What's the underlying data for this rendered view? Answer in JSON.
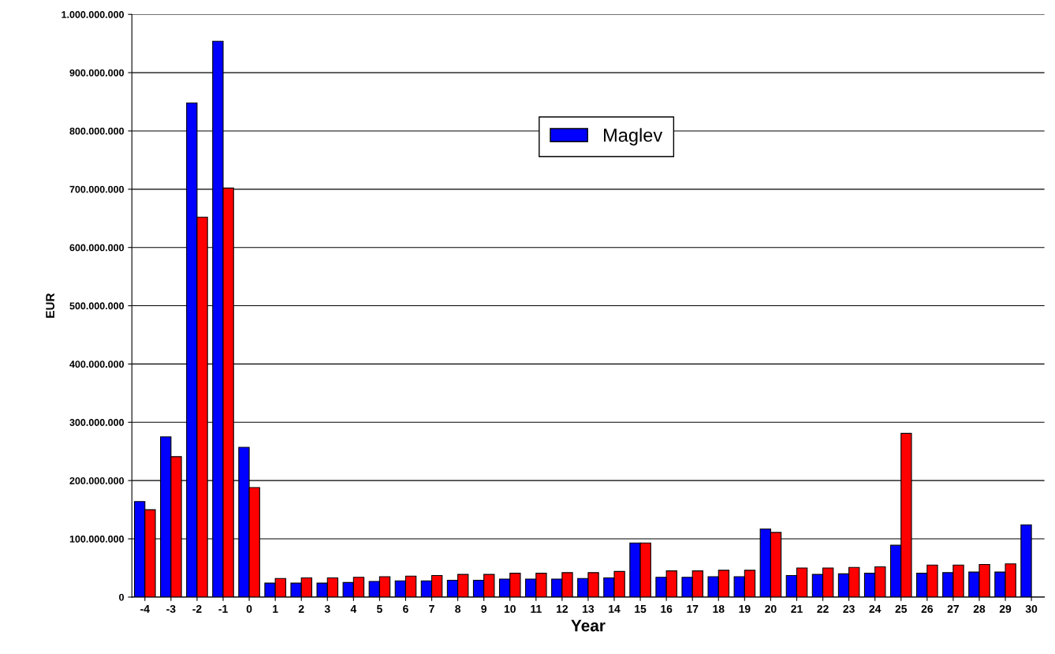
{
  "chart_data": {
    "type": "bar",
    "xlabel": "Year",
    "ylabel": "EUR",
    "categories": [
      "-4",
      "-3",
      "-2",
      "-1",
      "0",
      "1",
      "2",
      "3",
      "4",
      "5",
      "6",
      "7",
      "8",
      "9",
      "10",
      "11",
      "12",
      "13",
      "14",
      "15",
      "16",
      "17",
      "18",
      "19",
      "20",
      "21",
      "22",
      "23",
      "24",
      "25",
      "26",
      "27",
      "28",
      "29",
      "30"
    ],
    "series": [
      {
        "name": "Maglev",
        "color": "#0000ff",
        "values": [
          164000000,
          275000000,
          848000000,
          954000000,
          257000000,
          24000000,
          24000000,
          24000000,
          25000000,
          27000000,
          28000000,
          28000000,
          29000000,
          29000000,
          31000000,
          31000000,
          31000000,
          32000000,
          33000000,
          93000000,
          34000000,
          34000000,
          35000000,
          35000000,
          117000000,
          37000000,
          39000000,
          40000000,
          41000000,
          89000000,
          41000000,
          42000000,
          43000000,
          43000000,
          124000000
        ]
      },
      {
        "color": "#ff0000",
        "values": [
          150000000,
          241000000,
          652000000,
          702000000,
          188000000,
          32000000,
          33000000,
          33000000,
          34000000,
          35000000,
          36000000,
          37000000,
          39000000,
          39000000,
          41000000,
          41000000,
          42000000,
          42000000,
          44000000,
          93000000,
          45000000,
          45000000,
          46000000,
          46000000,
          111000000,
          50000000,
          50000000,
          51000000,
          52000000,
          281000000,
          55000000,
          55000000,
          56000000,
          57000000,
          null
        ]
      }
    ],
    "ylim": [
      0,
      1000000000
    ],
    "yticks": [
      {
        "value": 0,
        "label": "0"
      },
      {
        "value": 100000000,
        "label": "100.000.000"
      },
      {
        "value": 200000000,
        "label": "200.000.000"
      },
      {
        "value": 300000000,
        "label": "300.000.000"
      },
      {
        "value": 400000000,
        "label": "400.000.000"
      },
      {
        "value": 500000000,
        "label": "500.000.000"
      },
      {
        "value": 600000000,
        "label": "600.000.000"
      },
      {
        "value": 700000000,
        "label": "700.000.000"
      },
      {
        "value": 800000000,
        "label": "800.000.000"
      },
      {
        "value": 900000000,
        "label": "900.000.000"
      },
      {
        "value": 1000000000,
        "label": "1.000.000.000"
      }
    ],
    "grid": "y",
    "legend": "top"
  }
}
